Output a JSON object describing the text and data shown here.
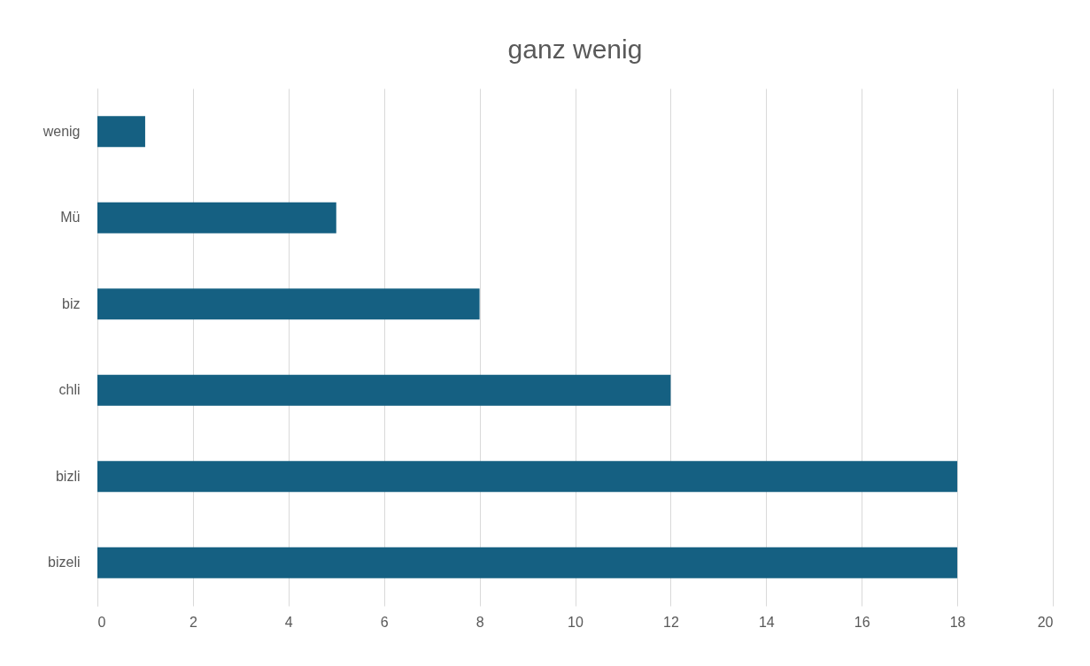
{
  "chart_data": {
    "type": "bar",
    "orientation": "horizontal",
    "title": "ganz wenig",
    "categories": [
      "wenig",
      "Mü",
      "biz",
      "chli",
      "bizli",
      "bizeli"
    ],
    "values": [
      1,
      5,
      8,
      12,
      18,
      18
    ],
    "color": "#156082",
    "xlim": [
      0,
      20
    ],
    "xticks": [
      0,
      2,
      4,
      6,
      8,
      10,
      12,
      14,
      16,
      18,
      20
    ],
    "grid": "x"
  }
}
